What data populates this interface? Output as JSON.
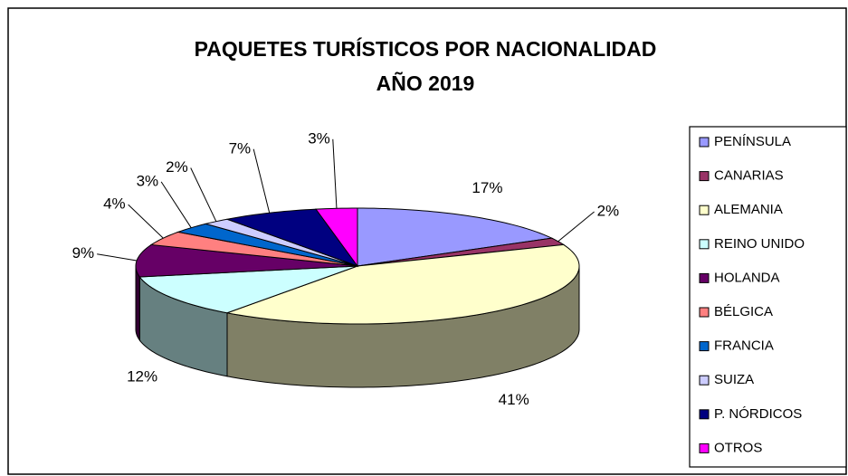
{
  "chart_data": {
    "type": "pie3d",
    "title": [
      "PAQUETES TURÍSTICOS POR NACIONALIDAD",
      "AÑO 2019"
    ],
    "categories": [
      "PENÍNSULA",
      "CANARIAS",
      "ALEMANIA",
      "REINO UNIDO",
      "HOLANDA",
      "BÉLGICA",
      "FRANCIA",
      "SUIZA",
      "P. NÓRDICOS",
      "OTROS"
    ],
    "values": [
      17,
      2,
      41,
      12,
      9,
      4,
      3,
      2,
      7,
      3
    ],
    "value_labels": [
      "17%",
      "2%",
      "41%",
      "12%",
      "9%",
      "4%",
      "3%",
      "2%",
      "7%",
      "3%"
    ],
    "colors": [
      "#9999ff",
      "#993366",
      "#ffffcc",
      "#ccffff",
      "#660066",
      "#ff8080",
      "#0066cc",
      "#ccccff",
      "#000080",
      "#ff00ff"
    ],
    "legend": "right"
  }
}
